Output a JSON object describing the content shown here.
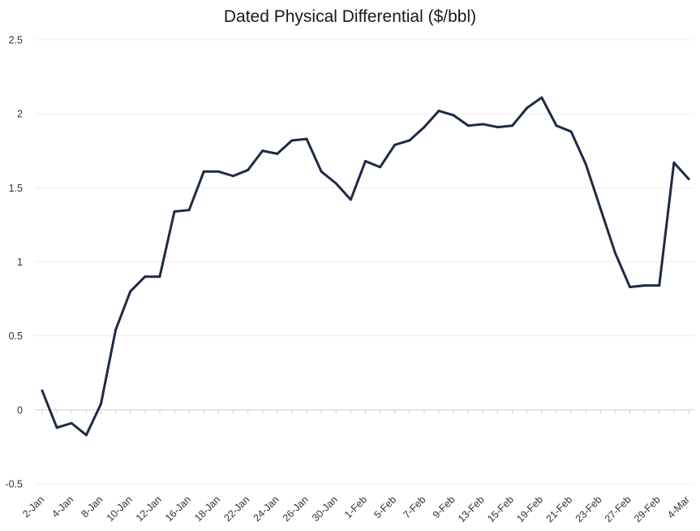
{
  "chart_data": {
    "type": "line",
    "title": "Dated Physical Differential ($/bbl)",
    "xlabel": "",
    "ylabel": "",
    "ylim": [
      -0.5,
      2.5
    ],
    "y_ticks": [
      "2.5",
      "2",
      "1.5",
      "1",
      "0.5",
      "0",
      "-0.5"
    ],
    "y_tick_values": [
      2.5,
      2,
      1.5,
      1,
      0.5,
      0,
      -0.5
    ],
    "grid": true,
    "legend": "none",
    "line_color": "#1f2a44",
    "x_tick_labels": [
      "2-Jan",
      "4-Jan",
      "8-Jan",
      "10-Jan",
      "12-Jan",
      "16-Jan",
      "18-Jan",
      "22-Jan",
      "24-Jan",
      "26-Jan",
      "30-Jan",
      "1-Feb",
      "5-Feb",
      "7-Feb",
      "9-Feb",
      "13-Feb",
      "15-Feb",
      "19-Feb",
      "21-Feb",
      "23-Feb",
      "27-Feb",
      "29-Feb",
      "4-Mar"
    ],
    "series": [
      {
        "values": [
          0.13,
          -0.12,
          -0.09,
          -0.17,
          0.04,
          0.54,
          0.8,
          0.9,
          0.9,
          1.34,
          1.35,
          1.61,
          1.61,
          1.58,
          1.62,
          1.75,
          1.73,
          1.82,
          1.83,
          1.61,
          1.53,
          1.42,
          1.68,
          1.64,
          1.79,
          1.82,
          1.91,
          2.02,
          1.99,
          1.92,
          1.93,
          1.91,
          1.92,
          2.04,
          2.11,
          1.92,
          1.88,
          1.66,
          1.36,
          1.06,
          0.83,
          0.84,
          0.84,
          1.67,
          1.56
        ]
      }
    ]
  }
}
